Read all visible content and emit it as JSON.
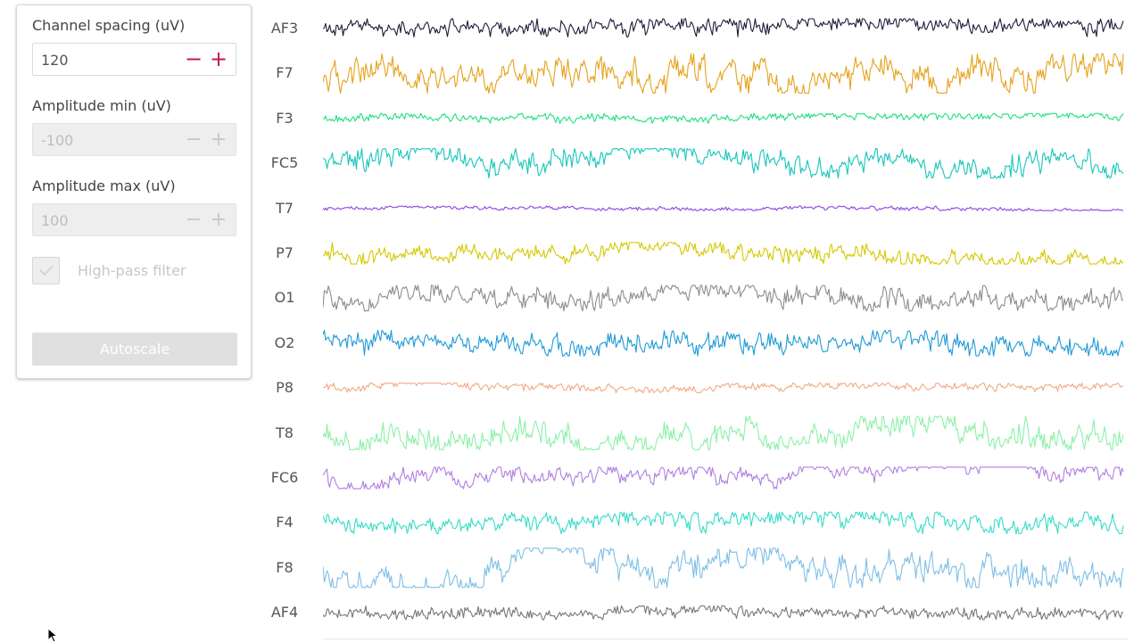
{
  "controls": {
    "channel_spacing": {
      "label": "Channel spacing (uV)",
      "value": "120",
      "minus": "−",
      "plus": "+",
      "enabled": true
    },
    "amplitude_min": {
      "label": "Amplitude min (uV)",
      "value": "-100",
      "minus": "−",
      "plus": "+",
      "enabled": false
    },
    "amplitude_max": {
      "label": "Amplitude max (uV)",
      "value": "100",
      "minus": "−",
      "plus": "+",
      "enabled": false
    },
    "highpass": {
      "label": "High-pass filter",
      "checked": true,
      "enabled": false
    },
    "autoscale": {
      "label": "Autoscale",
      "enabled": false
    }
  },
  "chart_data": {
    "type": "line",
    "series": [
      {
        "name": "AF3",
        "color": "#1f1d3b",
        "amplitude": 0.5,
        "smooth": 0.15
      },
      {
        "name": "F7",
        "color": "#e6a21c",
        "amplitude": 1.0,
        "smooth": 0.45
      },
      {
        "name": "F3",
        "color": "#1fe07e",
        "amplitude": 0.25,
        "smooth": 0.2
      },
      {
        "name": "FC5",
        "color": "#17c6bb",
        "amplitude": 0.75,
        "smooth": 0.35
      },
      {
        "name": "T7",
        "color": "#8e44e0",
        "amplitude": 0.12,
        "smooth": 0.2
      },
      {
        "name": "P7",
        "color": "#d6c800",
        "amplitude": 0.55,
        "smooth": 0.3
      },
      {
        "name": "O1",
        "color": "#8c8c8c",
        "amplitude": 0.65,
        "smooth": 0.25
      },
      {
        "name": "O2",
        "color": "#1f9ad6",
        "amplitude": 0.65,
        "smooth": 0.25
      },
      {
        "name": "P8",
        "color": "#f2aa82",
        "amplitude": 0.25,
        "smooth": 0.25
      },
      {
        "name": "T8",
        "color": "#8cf0a8",
        "amplitude": 0.85,
        "smooth": 0.4
      },
      {
        "name": "FC6",
        "color": "#b07fe0",
        "amplitude": 0.55,
        "smooth": 0.5
      },
      {
        "name": "F4",
        "color": "#37dcc8",
        "amplitude": 0.55,
        "smooth": 0.25
      },
      {
        "name": "F8",
        "color": "#7fbfe6",
        "amplitude": 1.0,
        "smooth": 0.55
      },
      {
        "name": "AF4",
        "color": "#777777",
        "amplitude": 0.35,
        "smooth": 0.15
      }
    ]
  }
}
